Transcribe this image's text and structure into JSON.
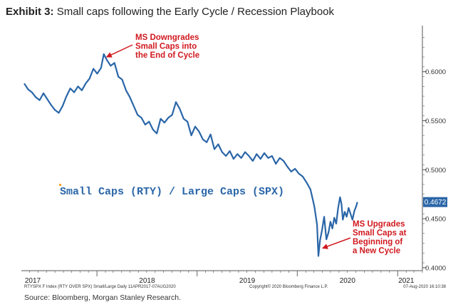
{
  "exhibit_label": "Exhibit 3:",
  "title": "Small caps following the Early Cycle / Recession Playbook",
  "source": "Source: Bloomberg, Morgan Stanley Research.",
  "footer": {
    "left": "RTYSPX F Index (RTY OVER SPX) Small/Large  Daily  11APR2017-07AUG2020",
    "center": "Copyright© 2020 Bloomberg Finance L.P.",
    "right": "07-Aug-2020 16:10:38"
  },
  "colors": {
    "line": "#2a66a8",
    "annotation": "#d0191f",
    "label_box": "#2a66a8"
  },
  "chart_data": {
    "type": "line",
    "legend_text": "Small Caps (RTY) / Large Caps (SPX)",
    "x_ticks": [
      "2017",
      "2018",
      "2019",
      "2020",
      "2021"
    ],
    "y_ticks": [
      "0.4000",
      "0.4500",
      "0.5000",
      "0.5500",
      "0.6000"
    ],
    "ylim": [
      0.397,
      0.647
    ],
    "xlim": [
      "2017-04-11",
      "2021-04-01"
    ],
    "last_value_label": "0.4672",
    "series": [
      {
        "values": [
          [
            "2017-04-11",
            0.588
          ],
          [
            "2017-04-25",
            0.582
          ],
          [
            "2017-05-09",
            0.579
          ],
          [
            "2017-05-23",
            0.574
          ],
          [
            "2017-06-06",
            0.571
          ],
          [
            "2017-06-20",
            0.578
          ],
          [
            "2017-07-04",
            0.572
          ],
          [
            "2017-07-18",
            0.566
          ],
          [
            "2017-08-01",
            0.561
          ],
          [
            "2017-08-15",
            0.558
          ],
          [
            "2017-08-29",
            0.565
          ],
          [
            "2017-09-12",
            0.575
          ],
          [
            "2017-09-26",
            0.583
          ],
          [
            "2017-10-10",
            0.579
          ],
          [
            "2017-10-24",
            0.585
          ],
          [
            "2017-11-07",
            0.581
          ],
          [
            "2017-11-21",
            0.588
          ],
          [
            "2017-12-05",
            0.593
          ],
          [
            "2017-12-19",
            0.603
          ],
          [
            "2018-01-02",
            0.598
          ],
          [
            "2018-01-16",
            0.604
          ],
          [
            "2018-01-26",
            0.618
          ],
          [
            "2018-02-06",
            0.612
          ],
          [
            "2018-02-20",
            0.606
          ],
          [
            "2018-03-06",
            0.609
          ],
          [
            "2018-03-20",
            0.595
          ],
          [
            "2018-04-03",
            0.592
          ],
          [
            "2018-04-17",
            0.581
          ],
          [
            "2018-05-01",
            0.574
          ],
          [
            "2018-05-15",
            0.565
          ],
          [
            "2018-05-29",
            0.556
          ],
          [
            "2018-06-12",
            0.553
          ],
          [
            "2018-06-26",
            0.546
          ],
          [
            "2018-07-10",
            0.549
          ],
          [
            "2018-07-24",
            0.541
          ],
          [
            "2018-08-07",
            0.537
          ],
          [
            "2018-08-21",
            0.552
          ],
          [
            "2018-09-04",
            0.548
          ],
          [
            "2018-09-18",
            0.553
          ],
          [
            "2018-10-02",
            0.556
          ],
          [
            "2018-10-16",
            0.569
          ],
          [
            "2018-10-30",
            0.562
          ],
          [
            "2018-11-13",
            0.552
          ],
          [
            "2018-11-27",
            0.549
          ],
          [
            "2018-12-11",
            0.535
          ],
          [
            "2018-12-25",
            0.544
          ],
          [
            "2019-01-08",
            0.539
          ],
          [
            "2019-01-22",
            0.531
          ],
          [
            "2019-02-05",
            0.528
          ],
          [
            "2019-02-19",
            0.536
          ],
          [
            "2019-03-05",
            0.521
          ],
          [
            "2019-03-19",
            0.526
          ],
          [
            "2019-04-02",
            0.518
          ],
          [
            "2019-04-16",
            0.514
          ],
          [
            "2019-04-30",
            0.519
          ],
          [
            "2019-05-14",
            0.511
          ],
          [
            "2019-05-28",
            0.516
          ],
          [
            "2019-06-11",
            0.512
          ],
          [
            "2019-06-25",
            0.518
          ],
          [
            "2019-07-09",
            0.514
          ],
          [
            "2019-07-23",
            0.509
          ],
          [
            "2019-08-06",
            0.516
          ],
          [
            "2019-08-20",
            0.511
          ],
          [
            "2019-09-03",
            0.517
          ],
          [
            "2019-09-17",
            0.512
          ],
          [
            "2019-10-01",
            0.514
          ],
          [
            "2019-10-15",
            0.506
          ],
          [
            "2019-10-29",
            0.512
          ],
          [
            "2019-11-12",
            0.509
          ],
          [
            "2019-11-26",
            0.503
          ],
          [
            "2019-12-10",
            0.498
          ],
          [
            "2019-12-24",
            0.501
          ],
          [
            "2020-01-07",
            0.496
          ],
          [
            "2020-01-21",
            0.493
          ],
          [
            "2020-02-04",
            0.487
          ],
          [
            "2020-02-18",
            0.48
          ],
          [
            "2020-03-03",
            0.463
          ],
          [
            "2020-03-13",
            0.444
          ],
          [
            "2020-03-18",
            0.412
          ],
          [
            "2020-03-24",
            0.428
          ],
          [
            "2020-03-31",
            0.438
          ],
          [
            "2020-04-08",
            0.452
          ],
          [
            "2020-04-16",
            0.429
          ],
          [
            "2020-04-24",
            0.436
          ],
          [
            "2020-05-01",
            0.447
          ],
          [
            "2020-05-08",
            0.44
          ],
          [
            "2020-05-15",
            0.451
          ],
          [
            "2020-05-22",
            0.445
          ],
          [
            "2020-05-29",
            0.461
          ],
          [
            "2020-06-05",
            0.472
          ],
          [
            "2020-06-10",
            0.465
          ],
          [
            "2020-06-15",
            0.449
          ],
          [
            "2020-06-22",
            0.457
          ],
          [
            "2020-06-29",
            0.452
          ],
          [
            "2020-07-06",
            0.461
          ],
          [
            "2020-07-13",
            0.455
          ],
          [
            "2020-07-20",
            0.449
          ],
          [
            "2020-07-27",
            0.458
          ],
          [
            "2020-08-03",
            0.463
          ],
          [
            "2020-08-07",
            0.467
          ]
        ]
      }
    ],
    "annotations": [
      {
        "text": [
          "MS Downgrades",
          "Small Caps into",
          "the End of Cycle"
        ],
        "point": [
          "2018-01-26",
          0.618
        ]
      },
      {
        "text": [
          "MS Upgrades",
          "Small Caps at",
          "Beginning of",
          "a New Cycle"
        ],
        "point": [
          "2020-03-18",
          0.42
        ]
      }
    ]
  }
}
